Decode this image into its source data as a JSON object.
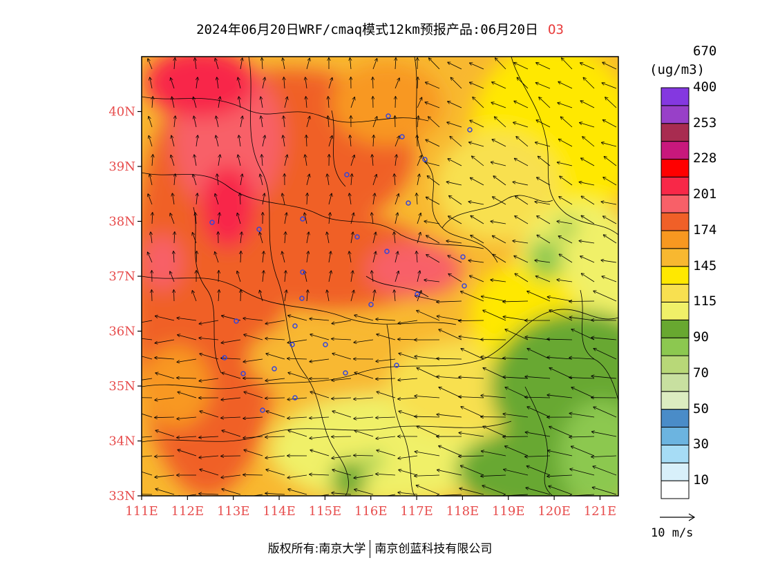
{
  "title": {
    "main": "2024年06月20日WRF/cmaq模式12km预报产品:06月20日",
    "species": "O3"
  },
  "axes": {
    "lat_labels": [
      "40N",
      "39N",
      "38N",
      "37N",
      "36N",
      "35N",
      "34N",
      "33N"
    ],
    "lon_labels": [
      "111E",
      "112E",
      "113E",
      "114E",
      "115E",
      "116E",
      "117E",
      "118E",
      "119E",
      "120E",
      "121E"
    ],
    "lat_range": [
      33,
      41
    ],
    "lon_range": [
      111,
      121.4
    ]
  },
  "legend": {
    "unit": "(ug/m3)",
    "colors": [
      "#ffffff",
      "#d8f0fa",
      "#a6dcf5",
      "#6cb4e0",
      "#4a8cc8",
      "#dcecc0",
      "#c8e0a0",
      "#b8d878",
      "#8cc850",
      "#68a830",
      "#f0f068",
      "#f8e050",
      "#ffe800",
      "#f8b830",
      "#f89820",
      "#f06028",
      "#f86068",
      "#f82848",
      "#ff0000",
      "#c8187c",
      "#a82c50",
      "#9840c8",
      "#8438e0"
    ],
    "labels": [
      "10",
      "30",
      "50",
      "70",
      "90",
      "115",
      "145",
      "174",
      "201",
      "228",
      "253",
      "400",
      "670"
    ]
  },
  "wind_reference": {
    "label": "10 m/s"
  },
  "copyright": {
    "left": "版权所有:南京大学",
    "right": "南京创蓝科技有限公司"
  }
}
